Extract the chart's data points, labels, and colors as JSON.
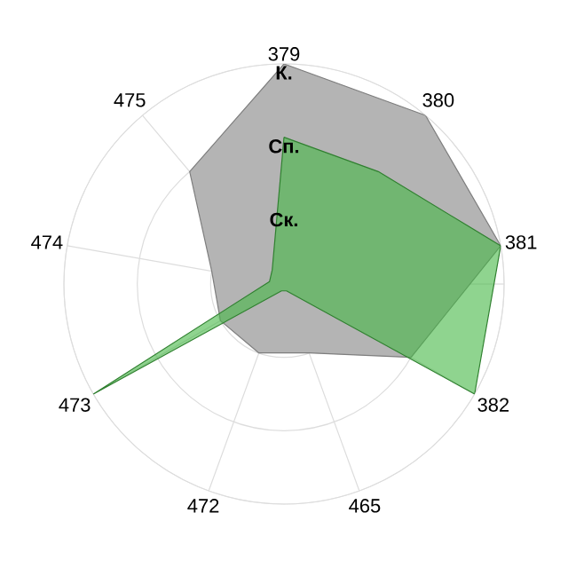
{
  "chart_data": {
    "type": "radar",
    "categories": [
      "379",
      "380",
      "381",
      "382",
      "465",
      "472",
      "473",
      "474",
      "475"
    ],
    "series": [
      {
        "color": "#b4b4b4",
        "values": [
          3,
          3,
          3,
          2,
          1,
          1,
          1,
          1,
          2
        ]
      },
      {
        "color": "#44b744",
        "values": [
          2,
          2,
          3,
          3,
          0.1,
          0.1,
          3,
          0.2,
          0.25
        ]
      }
    ],
    "ylim": [
      0,
      3
    ],
    "yticks": [
      {
        "value": 1,
        "label": "Ск."
      },
      {
        "value": 2,
        "label": "Сп."
      },
      {
        "value": 3,
        "label": "К."
      }
    ],
    "grid": true
  }
}
